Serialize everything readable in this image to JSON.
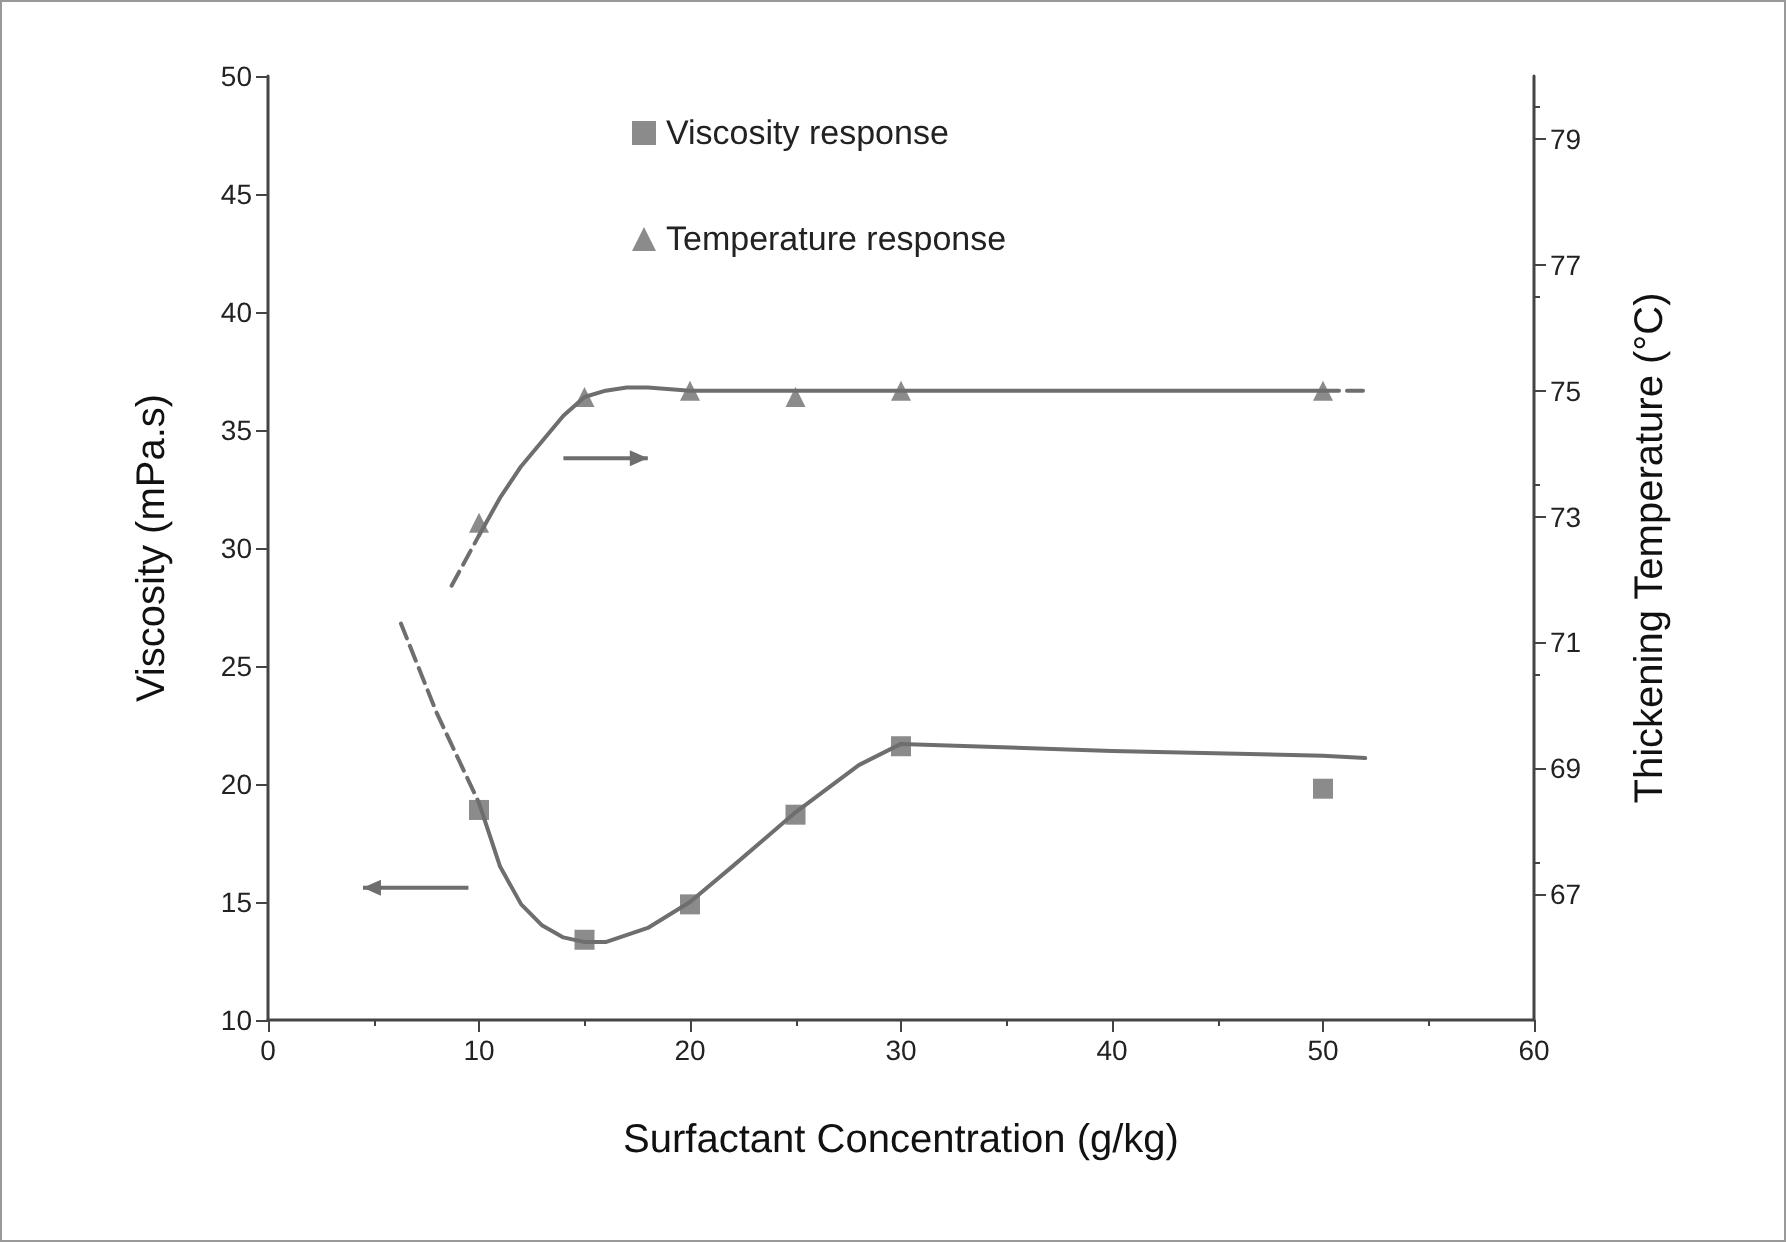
{
  "chart_data": {
    "type": "scatter",
    "xlabel": "Surfactant Concentration (g/kg)",
    "ylabel": "Viscosity (mPa.s)",
    "y2label": "Thickening Temperature (°C)",
    "xlim": [
      0,
      60
    ],
    "xticks": [
      0,
      10,
      20,
      30,
      40,
      50,
      60
    ],
    "ylim": [
      10,
      50
    ],
    "yticks": [
      10,
      15,
      20,
      25,
      30,
      35,
      40,
      45,
      50
    ],
    "y2lim": [
      65,
      80
    ],
    "y2ticks": [
      67,
      69,
      71,
      73,
      75,
      77,
      79
    ],
    "grid": false,
    "legend": "top",
    "series": [
      {
        "name": "Viscosity response",
        "marker": "square",
        "color": "#6e6e6e",
        "x": [
          10,
          15,
          20,
          25,
          30,
          50
        ],
        "values": [
          18.9,
          13.4,
          14.9,
          18.7,
          21.6,
          19.8
        ]
      },
      {
        "name": "Temperature response",
        "marker": "triangle",
        "color": "#6e6e6e",
        "axis": "y2",
        "x": [
          10,
          15,
          20,
          25,
          30,
          50
        ],
        "values": [
          72.9,
          74.9,
          75.0,
          74.9,
          75.0,
          75.0
        ]
      },
      {
        "type": "line",
        "marker": "none",
        "line_style": "dashed",
        "color": "#6e6e6e",
        "x": [
          6.3,
          8,
          10
        ],
        "values": [
          26.8,
          23,
          19.2
        ]
      },
      {
        "type": "line",
        "marker": "none",
        "line_style": "solid",
        "color": "#6e6e6e",
        "x": [
          10,
          11,
          12,
          13,
          14,
          15,
          16,
          18,
          20,
          22,
          25,
          28,
          30,
          40,
          50,
          52
        ],
        "values": [
          19.2,
          16.5,
          14.9,
          14,
          13.5,
          13.3,
          13.3,
          13.9,
          15,
          16.5,
          18.8,
          20.8,
          21.7,
          21.4,
          21.2,
          21.1
        ]
      },
      {
        "type": "line",
        "marker": "none",
        "line_style": "dashed",
        "color": "#6e6e6e",
        "axis": "y2",
        "x": [
          8.7,
          10
        ],
        "values": [
          71.9,
          72.7
        ]
      },
      {
        "type": "line",
        "marker": "none",
        "line_style": "solid",
        "color": "#6e6e6e",
        "axis": "y2",
        "x": [
          10,
          11,
          12,
          13,
          14,
          15,
          16,
          17,
          18,
          20,
          25,
          30,
          40,
          50
        ],
        "values": [
          72.7,
          73.3,
          73.8,
          74.2,
          74.6,
          74.9,
          75,
          75.05,
          75.05,
          75.0,
          75.0,
          75.0,
          75.0,
          75.0
        ]
      },
      {
        "type": "line",
        "marker": "none",
        "line_style": "dashed",
        "color": "#6e6e6e",
        "axis": "y2",
        "x": [
          50,
          52
        ],
        "values": [
          75.0,
          75.0
        ]
      }
    ]
  }
}
